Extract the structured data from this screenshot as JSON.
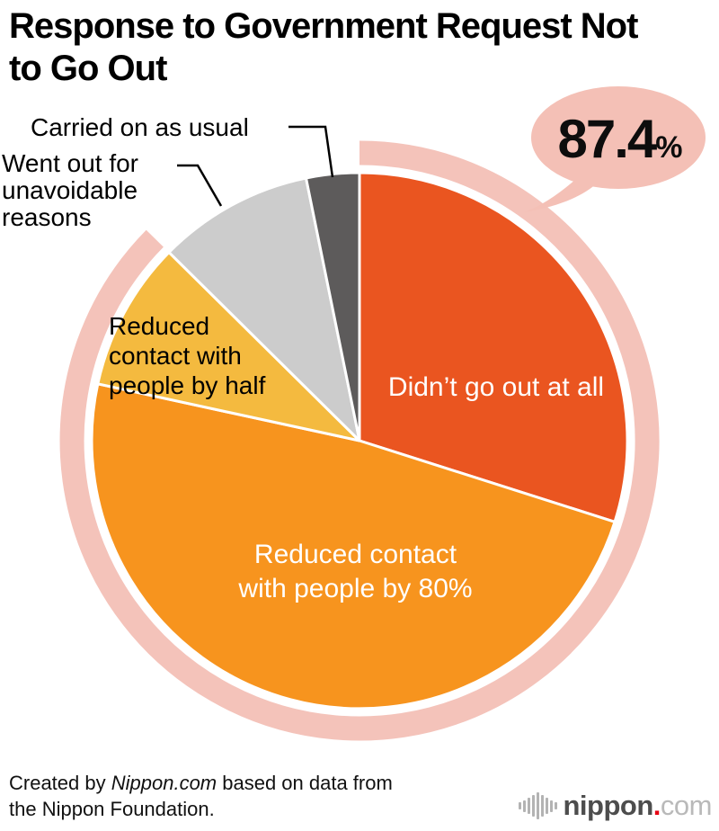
{
  "header": {
    "title": "Response to Government Request Not\nto Go Out"
  },
  "chart_data": {
    "type": "pie",
    "title": "Response to Government Request Not to Go Out",
    "unit": "%",
    "start_angle_deg": 0,
    "direction": "clockwise",
    "legend": "none",
    "slices": [
      {
        "label": "Didn’t go out at all",
        "value": 29.9,
        "color": "#ea5520",
        "label_color": "#ffffff"
      },
      {
        "label": "Reduced contact with people by 80%",
        "value": 48.5,
        "color": "#f7941e",
        "label_color": "#ffffff"
      },
      {
        "label": "Reduced contact with people by half",
        "value": 9.0,
        "color": "#f4ba3f",
        "label_color": "#000000"
      },
      {
        "label": "Went out for unavoidable reasons",
        "value": 9.4,
        "color": "#cccccc",
        "label_color": "#000000"
      },
      {
        "label": "Carried on as usual",
        "value": 3.2,
        "color": "#5d5b5b",
        "label_color": "#000000"
      }
    ],
    "callout": {
      "display": "87.4",
      "unit": "%",
      "value": 87.4
    },
    "colors": {
      "highlight_ring": "#f4c3ba",
      "callout_bubble": "#f4c0b6",
      "slice_border": "#ffffff",
      "leader_line": "#000000"
    }
  },
  "footer": {
    "credit_prefix": "Created by ",
    "credit_brand": "Nippon.com",
    "credit_suffix": " based on data from\nthe Nippon Foundation.",
    "logo": {
      "name": "nippon",
      "dot": ".",
      "tld": "com"
    }
  }
}
